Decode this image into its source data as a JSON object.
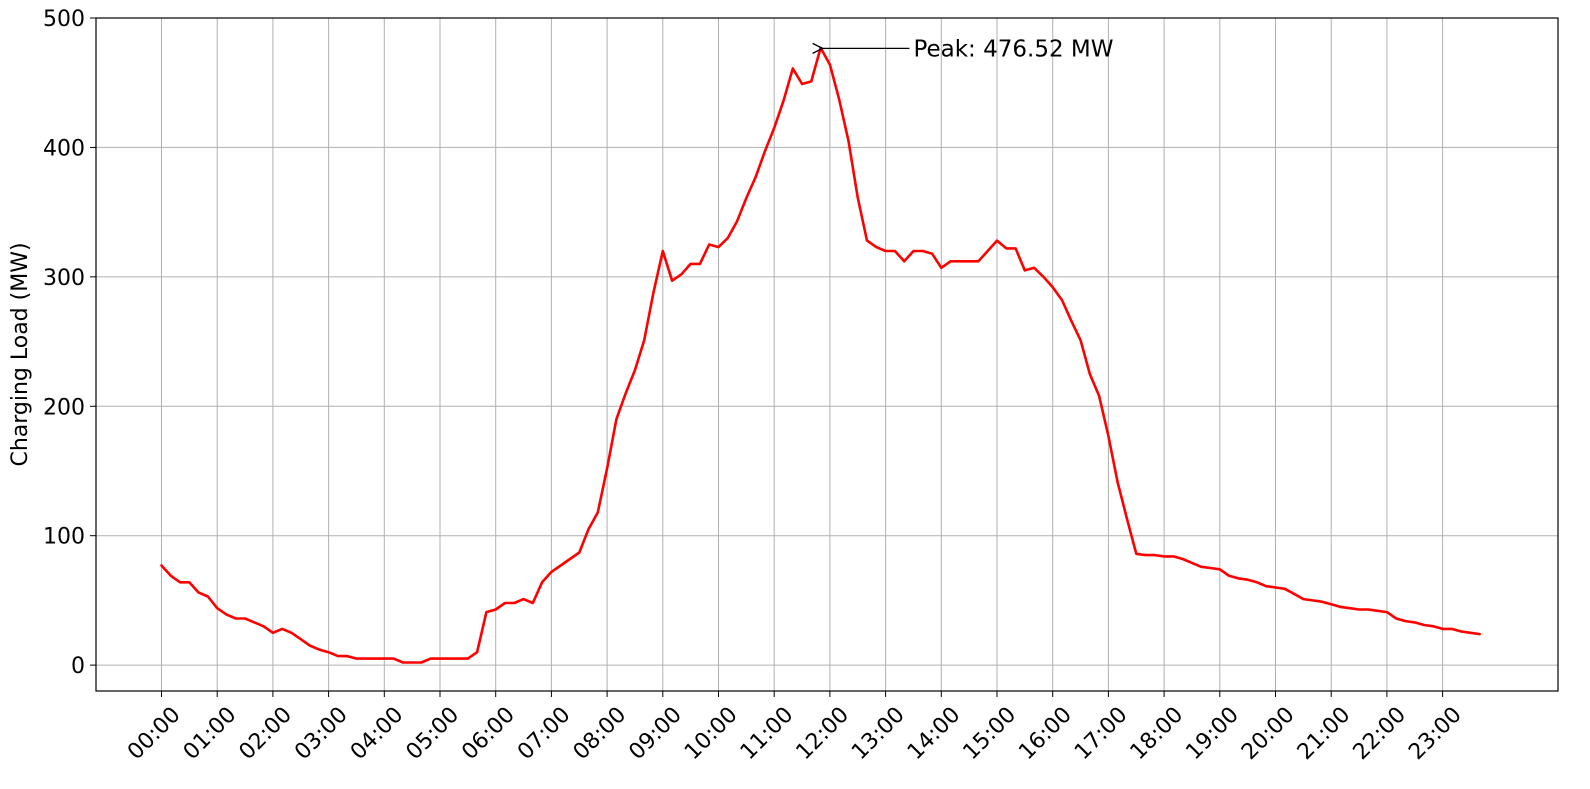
{
  "chart_data": {
    "type": "line",
    "title": "",
    "xlabel": "",
    "ylabel": "Charging Load (MW)",
    "ylim": [
      -20,
      500
    ],
    "yticks": [
      0,
      100,
      200,
      300,
      400,
      500
    ],
    "x_tick_labels": [
      "00:00",
      "01:00",
      "02:00",
      "03:00",
      "04:00",
      "05:00",
      "06:00",
      "07:00",
      "08:00",
      "09:00",
      "10:00",
      "11:00",
      "12:00",
      "13:00",
      "14:00",
      "15:00",
      "16:00",
      "17:00",
      "18:00",
      "19:00",
      "20:00",
      "21:00",
      "22:00",
      "23:00"
    ],
    "grid": true,
    "series": [
      {
        "name": "",
        "color": "#ff0000",
        "x": [
          "00:00",
          "00:10",
          "00:20",
          "00:30",
          "00:40",
          "00:50",
          "01:00",
          "01:10",
          "01:20",
          "01:30",
          "01:40",
          "01:50",
          "02:00",
          "02:10",
          "02:20",
          "02:30",
          "02:40",
          "02:50",
          "03:00",
          "03:10",
          "03:20",
          "03:30",
          "03:40",
          "03:50",
          "04:00",
          "04:10",
          "04:20",
          "04:30",
          "04:40",
          "04:50",
          "05:00",
          "05:10",
          "05:20",
          "05:30",
          "05:40",
          "05:50",
          "06:00",
          "06:10",
          "06:20",
          "06:30",
          "06:40",
          "06:50",
          "07:00",
          "07:10",
          "07:20",
          "07:30",
          "07:40",
          "07:50",
          "08:00",
          "08:10",
          "08:20",
          "08:30",
          "08:40",
          "08:50",
          "09:00",
          "09:10",
          "09:20",
          "09:30",
          "09:40",
          "09:50",
          "10:00",
          "10:10",
          "10:20",
          "10:30",
          "10:40",
          "10:50",
          "11:00",
          "11:10",
          "11:20",
          "11:30",
          "11:40",
          "11:50",
          "12:00",
          "12:10",
          "12:20",
          "12:30",
          "12:40",
          "12:50",
          "13:00",
          "13:10",
          "13:20",
          "13:30",
          "13:40",
          "13:50",
          "14:00",
          "14:10",
          "14:20",
          "14:30",
          "14:40",
          "14:50",
          "15:00",
          "15:10",
          "15:20",
          "15:30",
          "15:40",
          "15:50",
          "16:00",
          "16:10",
          "16:20",
          "16:30",
          "16:40",
          "16:50",
          "17:00",
          "17:10",
          "17:20",
          "17:30",
          "17:40",
          "17:50",
          "18:00",
          "18:10",
          "18:20",
          "18:30",
          "18:40",
          "18:50",
          "19:00",
          "19:10",
          "19:20",
          "19:30",
          "19:40",
          "19:50",
          "20:00",
          "20:10",
          "20:20",
          "20:30",
          "20:40",
          "20:50",
          "21:00",
          "21:10",
          "21:20",
          "21:30",
          "21:40",
          "21:50",
          "22:00",
          "22:10",
          "22:20",
          "22:30",
          "22:40",
          "22:50",
          "23:00",
          "23:10",
          "23:20",
          "23:30",
          "23:40"
        ],
        "values": [
          77,
          69,
          64,
          64,
          56,
          53,
          44,
          39,
          36,
          36,
          33,
          30,
          25,
          28,
          25,
          20,
          15,
          12,
          10,
          7,
          7,
          5,
          5,
          5,
          5,
          5,
          2,
          2,
          2,
          5,
          5,
          5,
          5,
          5,
          10,
          41,
          43,
          48,
          48,
          51,
          48,
          64,
          72,
          77,
          82,
          87,
          105,
          118,
          152,
          190,
          210,
          228,
          251,
          288,
          320,
          297,
          302,
          310,
          310,
          325,
          323,
          330,
          343,
          361,
          377,
          397,
          415,
          436,
          461,
          449,
          451,
          477,
          464,
          437,
          405,
          361,
          328,
          323,
          320,
          320,
          312,
          320,
          320,
          318,
          307,
          312,
          312,
          312,
          312,
          320,
          328,
          322,
          322,
          305,
          307,
          300,
          292,
          282,
          266,
          251,
          225,
          208,
          177,
          141,
          113,
          86,
          85,
          85,
          84,
          84,
          82,
          79,
          76,
          75,
          74,
          69,
          67,
          66,
          64,
          61,
          60,
          59,
          55,
          51,
          50,
          49,
          47,
          45,
          44,
          43,
          43,
          42,
          41,
          36,
          34,
          33,
          31,
          30,
          28,
          28,
          26,
          25,
          24
        ]
      }
    ],
    "annotations": [
      {
        "text": "Peak: 476.52 MW",
        "x": "11:50",
        "y": 476.52,
        "text_x": "13:30",
        "text_y": 476.52
      }
    ]
  }
}
